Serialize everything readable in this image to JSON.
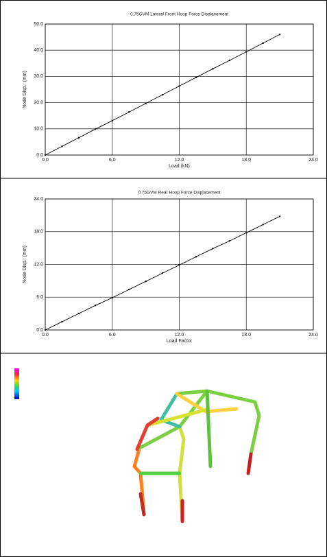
{
  "chart_data": [
    {
      "type": "line",
      "title": "0.75GVM Lateral Front Hoop Force Displacement",
      "x_label": "Load (kN)",
      "y_label": "Node Disp.: (mm)",
      "x": [
        0,
        1.5,
        3,
        4.5,
        6,
        7.5,
        9,
        10.5,
        12,
        13.5,
        15,
        16.5,
        18,
        19.5,
        21
      ],
      "series": [
        {
          "color": "#000000",
          "values": [
            0,
            3.3,
            6.6,
            9.9,
            13.1,
            16.4,
            19.7,
            23.0,
            26.3,
            29.6,
            32.9,
            36.1,
            39.4,
            42.7,
            46.0
          ]
        }
      ],
      "xlim": [
        0,
        24
      ],
      "ylim": [
        0,
        50
      ],
      "xticks": [
        {
          "value": 0,
          "label": "0.0"
        },
        {
          "value": 6,
          "label": "6.0"
        },
        {
          "value": 12,
          "label": "12.0"
        },
        {
          "value": 18,
          "label": "18.0"
        },
        {
          "value": 24,
          "label": "24.0"
        }
      ],
      "yticks": [
        {
          "value": 0,
          "label": "0.0"
        },
        {
          "value": 10,
          "label": "10.0"
        },
        {
          "value": 20,
          "label": "20.0"
        },
        {
          "value": 30,
          "label": "30.0"
        },
        {
          "value": 40,
          "label": "40.0"
        },
        {
          "value": 50,
          "label": "50.0"
        }
      ],
      "grid": true
    },
    {
      "type": "line",
      "title": "0.75GVM Rear Hoop Force Displacement",
      "x_label": "Load Factor",
      "y_label": "Node Disp.: (mm)",
      "x": [
        0,
        1.5,
        3,
        4.5,
        6,
        7.5,
        9,
        10.5,
        12,
        13.5,
        15,
        16.5,
        18,
        19.5,
        21
      ],
      "series": [
        {
          "color": "#000000",
          "values": [
            0,
            1.5,
            3.0,
            4.5,
            5.9,
            7.4,
            8.9,
            10.4,
            11.9,
            13.4,
            14.9,
            16.3,
            17.8,
            19.3,
            20.8
          ]
        }
      ],
      "xlim": [
        0,
        24
      ],
      "ylim": [
        0,
        24
      ],
      "xticks": [
        {
          "value": 0,
          "label": "0.0"
        },
        {
          "value": 6,
          "label": "6.0"
        },
        {
          "value": 12,
          "label": "12.0"
        },
        {
          "value": 18,
          "label": "18.0"
        },
        {
          "value": 24,
          "label": "24.0"
        }
      ],
      "yticks": [
        {
          "value": 0,
          "label": "0.0"
        },
        {
          "value": 6,
          "label": "6.0"
        },
        {
          "value": 12,
          "label": "12.0"
        },
        {
          "value": 18,
          "label": "18.0"
        },
        {
          "value": 24,
          "label": "24.0"
        }
      ],
      "grid": true
    }
  ]
}
